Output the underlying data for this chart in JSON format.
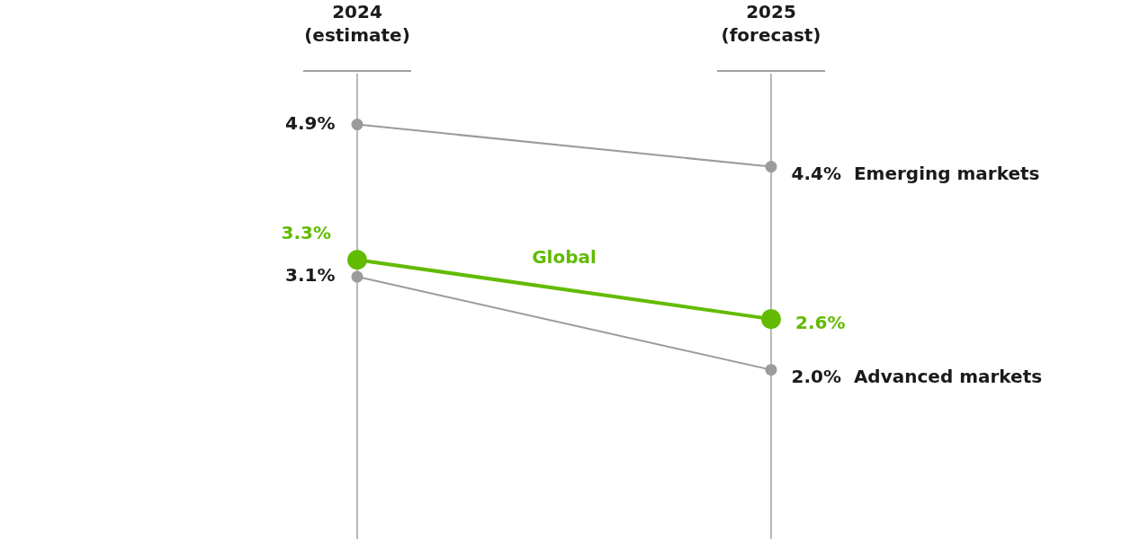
{
  "chart_data": {
    "type": "line",
    "categories": [
      "2024\n(estimate)",
      "2025\n(forecast)"
    ],
    "series": [
      {
        "name": "Emerging markets",
        "color": "#9b9b9d",
        "values": [
          4.9,
          4.4
        ],
        "value_labels": [
          "4.9%",
          "4.4%"
        ]
      },
      {
        "name": "Global",
        "color": "#62bb00",
        "values": [
          3.3,
          2.6
        ],
        "value_labels": [
          "3.3%",
          "2.6%"
        ]
      },
      {
        "name": "Advanced markets",
        "color": "#9b9b9d",
        "values": [
          3.1,
          2.0
        ],
        "value_labels": [
          "3.1%",
          "2.0%"
        ]
      }
    ],
    "ylim": [
      0,
      5.5
    ],
    "grid": "x",
    "legend": false,
    "marker": "circle",
    "line_style": "solid"
  }
}
